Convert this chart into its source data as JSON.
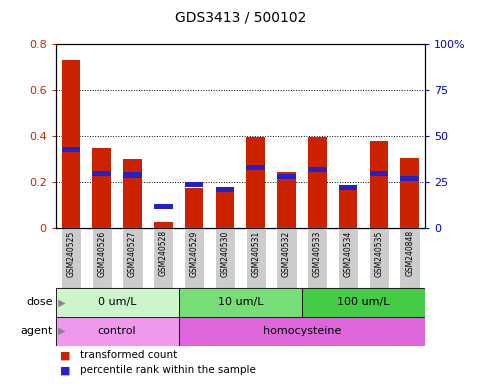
{
  "title": "GDS3413 / 500102",
  "samples": [
    "GSM240525",
    "GSM240526",
    "GSM240527",
    "GSM240528",
    "GSM240529",
    "GSM240530",
    "GSM240531",
    "GSM240532",
    "GSM240533",
    "GSM240534",
    "GSM240535",
    "GSM240848"
  ],
  "red_values": [
    0.73,
    0.35,
    0.3,
    0.03,
    0.175,
    0.165,
    0.395,
    0.245,
    0.395,
    0.175,
    0.38,
    0.305
  ],
  "blue_pct": [
    43,
    30,
    29,
    12,
    24,
    21,
    33,
    28,
    32,
    22,
    30,
    27
  ],
  "left_ylim": [
    0,
    0.8
  ],
  "right_ylim": [
    0,
    100
  ],
  "left_yticks": [
    0,
    0.2,
    0.4,
    0.6,
    0.8
  ],
  "right_yticks": [
    0,
    25,
    50,
    75,
    100
  ],
  "left_yticklabels": [
    "0",
    "0.2",
    "0.4",
    "0.6",
    "0.8"
  ],
  "right_yticklabels": [
    "0",
    "25",
    "50",
    "75",
    "100%"
  ],
  "dose_groups": [
    {
      "label": "0 um/L",
      "start": 0,
      "end": 4,
      "color": "#ccf5cc"
    },
    {
      "label": "10 um/L",
      "start": 4,
      "end": 8,
      "color": "#77dd77"
    },
    {
      "label": "100 um/L",
      "start": 8,
      "end": 12,
      "color": "#44cc44"
    }
  ],
  "agent_groups": [
    {
      "label": "control",
      "start": 0,
      "end": 4,
      "color": "#ee99ee"
    },
    {
      "label": "homocysteine",
      "start": 4,
      "end": 12,
      "color": "#dd66dd"
    }
  ],
  "dose_label": "dose",
  "agent_label": "agent",
  "bar_color_red": "#cc2200",
  "bar_color_blue": "#2222cc",
  "bg_color": "#ffffff",
  "plot_bg": "#ffffff",
  "left_tick_color": "#cc2200",
  "right_tick_color": "#0000cc",
  "legend_red": "transformed count",
  "legend_blue": "percentile rank within the sample",
  "sample_bg": "#cccccc"
}
